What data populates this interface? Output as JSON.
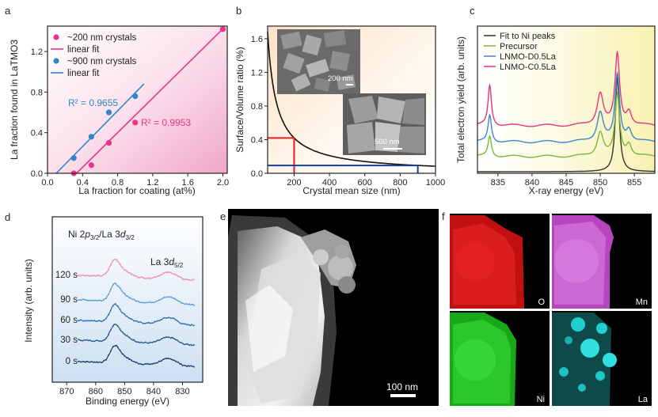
{
  "panels": {
    "a": {
      "letter": "a",
      "chart_data": {
        "type": "scatter",
        "xlabel": "La fraction for coating (at%)",
        "ylabel": "La fraction found in LaTMO3",
        "xlim": [
          0,
          2.05
        ],
        "ylim": [
          0,
          1.45
        ],
        "xticks": [
          0,
          0.4,
          0.8,
          1.2,
          1.6,
          2.0
        ],
        "xtick_labels": [
          "0.0",
          "0.4",
          "0.8",
          "1.2",
          "1.6",
          "2.0"
        ],
        "yticks": [
          0,
          0.4,
          0.8,
          1.2
        ],
        "ytick_labels": [
          "0.0",
          "0.4",
          "0.8",
          "1.2"
        ],
        "legend": {
          "position": "top-left",
          "entries": [
            "~200 nm crystals",
            "linear fit",
            "~900 nm crystals",
            "linear fit"
          ]
        },
        "series": [
          {
            "name": "~200 nm crystals",
            "color": "#e8348b",
            "x": [
              0.3,
              0.5,
              0.7,
              1.0,
              2.0
            ],
            "y": [
              0.0,
              0.08,
              0.3,
              0.5,
              1.42
            ],
            "fit": {
              "x": [
                0.33,
                2.02
              ],
              "y": [
                0.0,
                1.44
              ]
            },
            "r2_label": "R² = 0.9953"
          },
          {
            "name": "~900 nm crystals",
            "color": "#2e86c9",
            "x": [
              0.3,
              0.5,
              0.7,
              1.0
            ],
            "y": [
              0.15,
              0.36,
              0.6,
              0.76
            ],
            "fit": {
              "x": [
                0.1,
                1.1
              ],
              "y": [
                0.0,
                0.88
              ]
            },
            "r2_label": "R² = 0.9655"
          }
        ]
      }
    },
    "b": {
      "letter": "b",
      "chart_data": {
        "type": "line",
        "xlabel": "Crystal mean size (nm)",
        "ylabel": "Surface/Volume ratio (%)",
        "xlim": [
          50,
          1000
        ],
        "ylim": [
          0,
          1.75
        ],
        "xticks": [
          200,
          400,
          600,
          800,
          1000
        ],
        "xtick_labels": [
          "200",
          "400",
          "600",
          "800",
          "1000"
        ],
        "yticks": [
          0,
          0.4,
          0.8,
          1.2,
          1.6
        ],
        "ytick_labels": [
          "0.0",
          "0.4",
          "0.8",
          "1.2",
          "1.6"
        ],
        "curve": {
          "formula": "84/x",
          "x_start": 50,
          "x_end": 1000
        },
        "markers": [
          {
            "x": 200,
            "y": 0.42,
            "color": "#e02020"
          },
          {
            "x": 900,
            "y": 0.093,
            "color": "#1a3f8a"
          }
        ],
        "insets": [
          {
            "label": "200 nm"
          },
          {
            "label": "500 nm"
          }
        ]
      }
    },
    "c": {
      "letter": "c",
      "chart_data": {
        "type": "line",
        "xlabel": "X-ray energy (eV)",
        "ylabel": "Total electron yield (arb. units)",
        "xlim": [
          832,
          858
        ],
        "xticks": [
          835,
          840,
          845,
          850,
          855
        ],
        "xtick_labels": [
          "835",
          "840",
          "845",
          "850",
          "855"
        ],
        "legend": {
          "position": "top-left",
          "entries": [
            "Fit to Ni peaks",
            "Precursor",
            "LNMO-D0.5La",
            "LNMO-C0.5La"
          ]
        },
        "series": [
          {
            "name": "Fit to Ni peaks",
            "color": "#333333",
            "offset": 0.0,
            "peaks": [
              {
                "c": 852.5,
                "w": 0.35,
                "h": 1.75
              }
            ]
          },
          {
            "name": "Precursor",
            "color": "#78b83a",
            "offset": 0.28,
            "peaks": [
              {
                "c": 833.8,
                "w": 0.3,
                "h": 0.38
              },
              {
                "c": 850.0,
                "w": 0.55,
                "h": 0.45
              },
              {
                "c": 852.5,
                "w": 0.4,
                "h": 1.12
              },
              {
                "c": 854.2,
                "w": 0.45,
                "h": 0.22
              }
            ]
          },
          {
            "name": "LNMO-D0.5La",
            "color": "#3d86c9",
            "offset": 0.55,
            "peaks": [
              {
                "c": 833.8,
                "w": 0.3,
                "h": 0.5
              },
              {
                "c": 850.0,
                "w": 0.55,
                "h": 0.55
              },
              {
                "c": 852.5,
                "w": 0.4,
                "h": 1.22
              },
              {
                "c": 854.2,
                "w": 0.45,
                "h": 0.22
              }
            ]
          },
          {
            "name": "LNMO-C0.5La",
            "color": "#e8347f",
            "offset": 0.85,
            "peaks": [
              {
                "c": 833.8,
                "w": 0.3,
                "h": 0.75
              },
              {
                "c": 850.0,
                "w": 0.55,
                "h": 0.6
              },
              {
                "c": 852.5,
                "w": 0.4,
                "h": 1.3
              },
              {
                "c": 854.2,
                "w": 0.45,
                "h": 0.25
              }
            ]
          }
        ]
      }
    },
    "d": {
      "letter": "d",
      "chart_data": {
        "type": "line",
        "xlabel": "Binding energy (eV)",
        "ylabel": "Intensity (arb. units)",
        "xlim": [
          875,
          823
        ],
        "xticks": [
          870,
          860,
          850,
          840,
          830
        ],
        "xtick_labels": [
          "870",
          "860",
          "850",
          "840",
          "830"
        ],
        "annotations": [
          "Ni 2p3/2/La 3d3/2",
          "La 3d5/2"
        ],
        "series": [
          {
            "name": "0 s",
            "color": "#1b3c6b",
            "offset": 0.0
          },
          {
            "name": "30 s",
            "color": "#24558f",
            "offset": 1.0
          },
          {
            "name": "60 s",
            "color": "#2c6db5",
            "offset": 2.0
          },
          {
            "name": "90 s",
            "color": "#5c9cd8",
            "offset": 3.0
          },
          {
            "name": "120 s",
            "color": "#f08cb8",
            "offset": 4.0
          }
        ]
      }
    },
    "e": {
      "letter": "e",
      "scale_label": "100 nm"
    },
    "f": {
      "letter": "f",
      "maps": [
        {
          "element": "O",
          "color": "#e01010"
        },
        {
          "element": "Mn",
          "color": "#c85ad0"
        },
        {
          "element": "Ni",
          "color": "#20c020"
        },
        {
          "element": "La",
          "color": "#20d0d0"
        }
      ]
    }
  }
}
